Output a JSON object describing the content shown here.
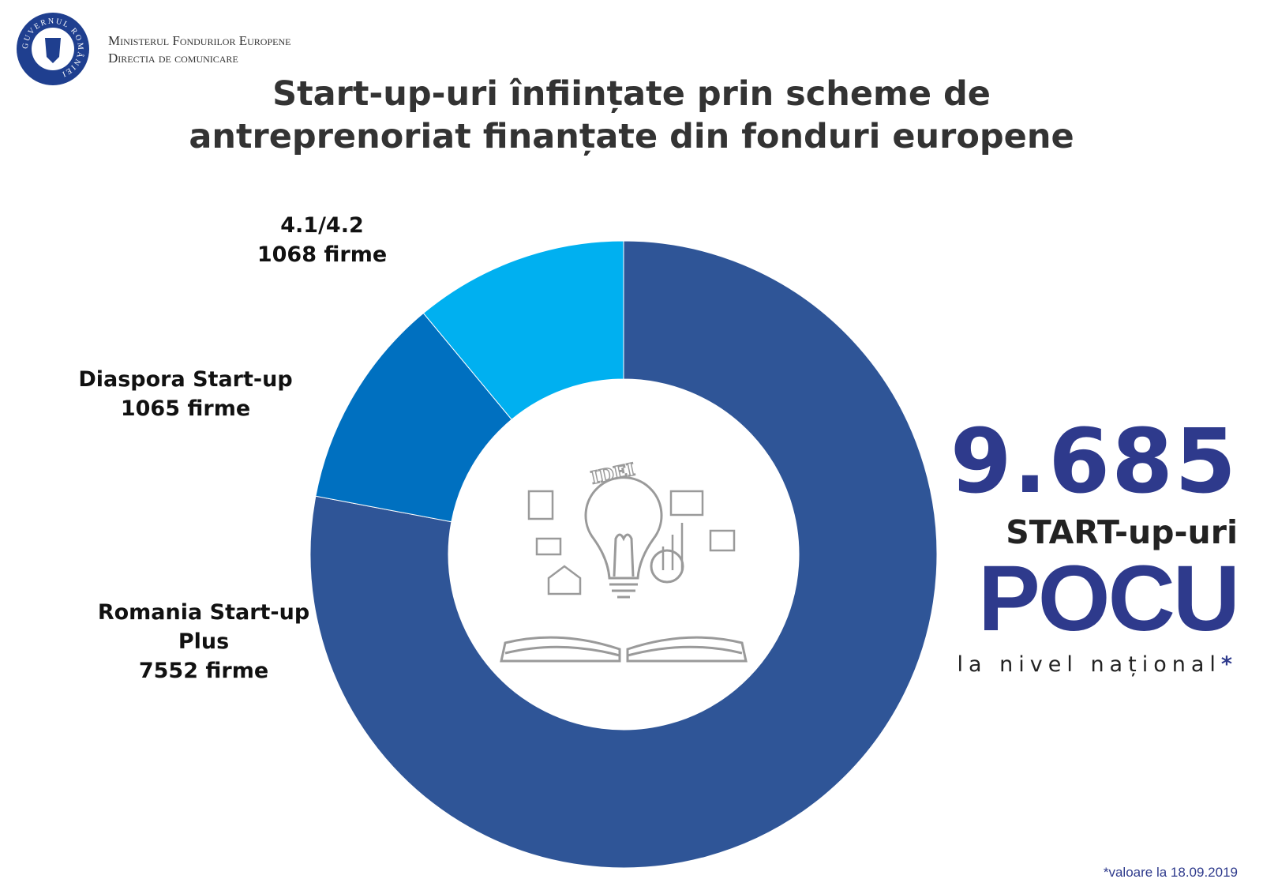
{
  "header": {
    "logo_text": "GUVERNUL ROMÂNIEI",
    "ministry": "Ministerul Fondurilor Europene",
    "department": "Directia de comunicare"
  },
  "chart_data": {
    "type": "donut",
    "title": "Start-up-uri înființate prin scheme de antreprenoriat finanțate din fonduri europene",
    "categories": [
      "Romania Start-up Plus",
      "Diaspora Start-up",
      "4.1/4.2"
    ],
    "values": [
      7552,
      1065,
      1068
    ],
    "value_labels": [
      "7552 firme",
      "1065 firme",
      "1068 firme"
    ],
    "colors": [
      "#2f5597",
      "#0070c0",
      "#00b0f0"
    ],
    "center_text": "IDEI"
  },
  "summary": {
    "total": "9.685",
    "unit": "START-up-uri",
    "program": "POCU",
    "scope": "la nivel național",
    "footnote_mark": "*"
  },
  "footnote": "*valoare la 18.09.2019"
}
